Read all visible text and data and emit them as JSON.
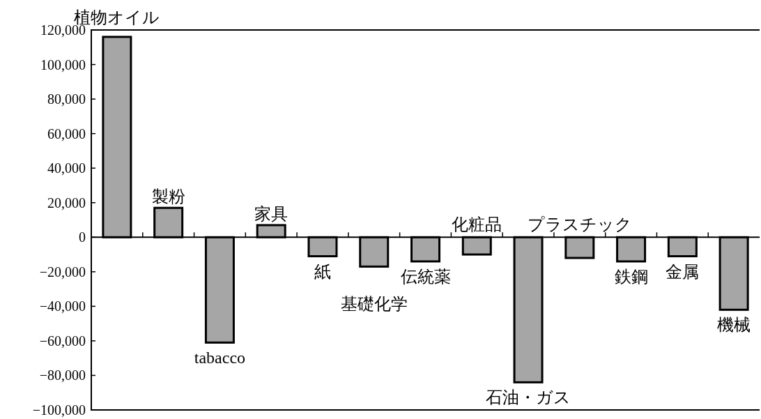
{
  "chart_data": {
    "type": "bar",
    "categories": [
      "植物オイル",
      "製粉",
      "tabacco",
      "家具",
      "紙",
      "基礎化学",
      "伝統薬",
      "化粧品",
      "石油・ガス",
      "プラスチック",
      "鉄鋼",
      "金属",
      "機械"
    ],
    "values": [
      116000,
      17000,
      -61000,
      7000,
      -11000,
      -17000,
      -14000,
      -10000,
      -84000,
      -12000,
      -14000,
      -11000,
      -42000
    ],
    "color": "#a6a6a6",
    "ylim": [
      -100000,
      120000
    ],
    "yticks": [
      {
        "value": -100000,
        "label": "−100,000"
      },
      {
        "value": -80000,
        "label": "−80,000"
      },
      {
        "value": -60000,
        "label": "−60,000"
      },
      {
        "value": -40000,
        "label": "−40,000"
      },
      {
        "value": -20000,
        "label": "−20,000"
      },
      {
        "value": 0,
        "label": "0"
      },
      {
        "value": 20000,
        "label": "20,000"
      },
      {
        "value": 40000,
        "label": "40,000"
      },
      {
        "value": 60000,
        "label": "60,000"
      },
      {
        "value": 80000,
        "label": "80,000"
      },
      {
        "value": 100000,
        "label": "100,000"
      },
      {
        "value": 120000,
        "label": "120,000"
      }
    ]
  }
}
